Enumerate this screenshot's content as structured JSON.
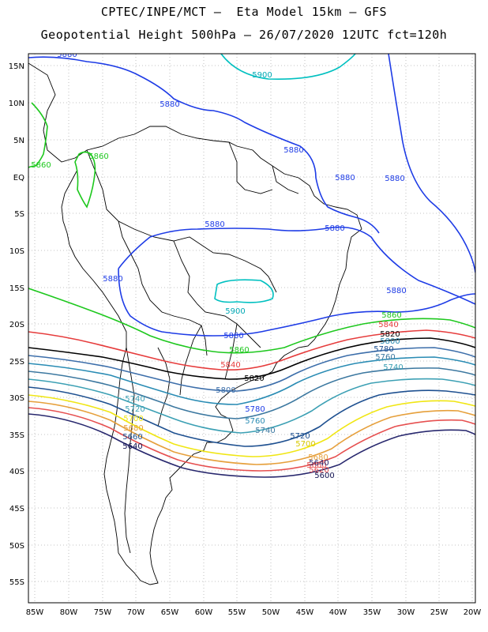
{
  "header": {
    "line1": "CPTEC/INPE/MCT –  Eta Model 15km – GFS",
    "line2": "Geopotential Height 500hPa – 26/07/2020 12UTC fct=120h"
  },
  "axes": {
    "lon_labels": [
      "85W",
      "80W",
      "75W",
      "70W",
      "65W",
      "60W",
      "55W",
      "50W",
      "45W",
      "40W",
      "35W",
      "30W",
      "25W",
      "20W"
    ],
    "lat_labels": [
      "15N",
      "10N",
      "5N",
      "EQ",
      "5S",
      "10S",
      "15S",
      "20S",
      "25S",
      "30S",
      "35S",
      "40S",
      "45S",
      "50S",
      "55S"
    ]
  },
  "contour_colors": {
    "5900": "#00c0c0",
    "5880": "#1e3ce6",
    "5860": "#1ec81e",
    "5840": "#e63c3c",
    "5820": "#000000",
    "5800": "#3c6eaa",
    "5780": "#2a8cb4",
    "5760": "#3c78a0",
    "5740": "#3ca0b4",
    "5720": "#1e5090",
    "5700": "#f0e614",
    "5680": "#e6a03c",
    "5660": "#e65050",
    "5640": "#28286e",
    "5620": "#101050"
  },
  "contour_labels": [
    {
      "text": "5880",
      "color": "#1e3ce6"
    },
    {
      "text": "5900",
      "color": "#00a8b4"
    },
    {
      "text": "5880",
      "color": "#1e3ce6"
    },
    {
      "text": "5860",
      "color": "#1ec81e"
    },
    {
      "text": "5860",
      "color": "#1ec81e"
    },
    {
      "text": "5880",
      "color": "#1e3ce6"
    },
    {
      "text": "5880",
      "color": "#1e3ce6"
    },
    {
      "text": "5880",
      "color": "#1e3ce6"
    },
    {
      "text": "5880",
      "color": "#1e3ce6"
    },
    {
      "text": "5880",
      "color": "#1e3ce6"
    },
    {
      "text": "5880",
      "color": "#1e3ce6"
    },
    {
      "text": "5900",
      "color": "#00a8b4"
    },
    {
      "text": "5880",
      "color": "#1e3ce6"
    },
    {
      "text": "5880",
      "color": "#1e3ce6"
    },
    {
      "text": "5860",
      "color": "#1ec81e"
    },
    {
      "text": "5860",
      "color": "#1ec81e"
    },
    {
      "text": "5840",
      "color": "#e63c3c"
    },
    {
      "text": "5840",
      "color": "#e63c3c"
    },
    {
      "text": "5820",
      "color": "#000000"
    },
    {
      "text": "5820",
      "color": "#000000"
    },
    {
      "text": "5800",
      "color": "#2a8cb4"
    },
    {
      "text": "5780",
      "color": "#1e5090"
    },
    {
      "text": "5760",
      "color": "#3c78a0"
    },
    {
      "text": "5740",
      "color": "#3ca0b4"
    },
    {
      "text": "5800",
      "color": "#3c6eaa"
    },
    {
      "text": "5780",
      "color": "#1e3ce6"
    },
    {
      "text": "5760",
      "color": "#2a8cb4"
    },
    {
      "text": "5740",
      "color": "#3c78a0"
    },
    {
      "text": "5720",
      "color": "#1e5090"
    },
    {
      "text": "5740",
      "color": "#3ca0b4"
    },
    {
      "text": "5720",
      "color": "#3ca0b4"
    },
    {
      "text": "5700",
      "color": "#f0e614"
    },
    {
      "text": "5680",
      "color": "#e6a03c"
    },
    {
      "text": "5660",
      "color": "#1e5090"
    },
    {
      "text": "5640",
      "color": "#101050"
    },
    {
      "text": "5700",
      "color": "#d8c800"
    },
    {
      "text": "5680",
      "color": "#e6a03c"
    },
    {
      "text": "5660",
      "color": "#e65050"
    },
    {
      "text": "5640",
      "color": "#28286e"
    },
    {
      "text": "5620",
      "color": "#e65050"
    },
    {
      "text": "5600",
      "color": "#101050"
    }
  ]
}
